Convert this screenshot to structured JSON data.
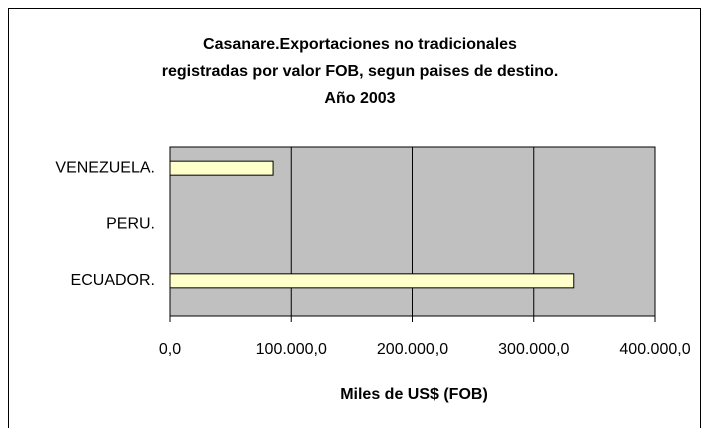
{
  "chart_data": {
    "type": "barh",
    "title": [
      "Casanare.Exportaciones no tradicionales",
      "registradas por valor FOB, segun paises de destino.",
      "Año 2003"
    ],
    "x_label": "Miles de US$ (FOB)",
    "categories": [
      "ECUADOR.",
      "PERU.",
      "VENEZUELA."
    ],
    "values": [
      333000,
      0,
      85000
    ],
    "color": "#ffffcc",
    "xlim": [
      0,
      400000
    ],
    "xticks": [
      {
        "value": 0,
        "label": "0,0"
      },
      {
        "value": 100000,
        "label": "100.000,0"
      },
      {
        "value": 200000,
        "label": "200.000,0"
      },
      {
        "value": 300000,
        "label": "300.000,0"
      },
      {
        "value": 400000,
        "label": "400.000,0"
      }
    ],
    "grid": true
  }
}
